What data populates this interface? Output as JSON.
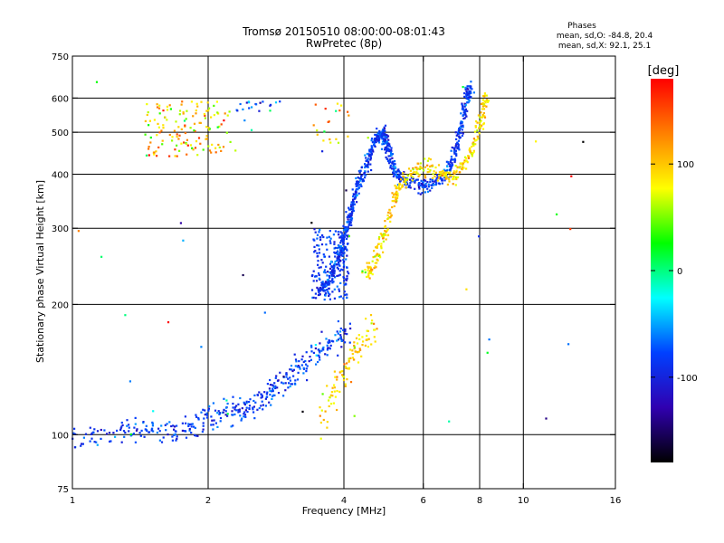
{
  "chart_data": {
    "type": "scatter",
    "title": "Tromsø 20150510 08:00:00-08:01:43",
    "subtitle": "RwPretec (8p)",
    "xlabel": "Frequency [MHz]",
    "ylabel": "Stationary phase Virtual Height [km]",
    "x_scale": "log",
    "y_scale": "log",
    "xlim": [
      1,
      16
    ],
    "ylim": [
      75,
      750
    ],
    "x_ticks": [
      1,
      2,
      4,
      6,
      8,
      10,
      16
    ],
    "x_tick_labels": [
      "1",
      "2",
      "4",
      "6",
      "8",
      "10",
      "16"
    ],
    "y_ticks": [
      75,
      100,
      200,
      300,
      400,
      500,
      600,
      750
    ],
    "y_tick_labels": [
      "75",
      "100",
      "200",
      "300",
      "400",
      "500",
      "600",
      "750"
    ],
    "grid": true,
    "grid_x": [
      2,
      4,
      6,
      8,
      10
    ],
    "grid_y": [
      100,
      200,
      300,
      400,
      500,
      600
    ],
    "legend": {
      "title": "Phases",
      "lines": [
        "mean, sd,O:  -84.8, 20.4",
        "mean, sd,X:  92.1, 25.1"
      ],
      "placement": "top-right"
    },
    "colorbar": {
      "label": "[deg]",
      "range": [
        -180,
        180
      ],
      "ticks": [
        100,
        0,
        -100
      ],
      "tick_labels": [
        "100",
        "0",
        "-100"
      ],
      "colors": [
        "#ff0000",
        "#ff8000",
        "#ffff00",
        "#00ff00",
        "#00ffff",
        "#0040ff",
        "#3000b0",
        "#000000"
      ]
    },
    "series": [
      {
        "name": "O-mode",
        "phase_mean": -84.8,
        "phase_sd": 20.4
      },
      {
        "name": "X-mode",
        "phase_mean": 92.1,
        "phase_sd": 25.1
      }
    ],
    "o_trace_high": [
      [
        3.55,
        215
      ],
      [
        3.7,
        225
      ],
      [
        3.85,
        250
      ],
      [
        3.95,
        270
      ],
      [
        4.05,
        300
      ],
      [
        4.15,
        330
      ],
      [
        4.25,
        365
      ],
      [
        4.4,
        400
      ],
      [
        4.55,
        440
      ],
      [
        4.7,
        480
      ],
      [
        4.85,
        500
      ],
      [
        4.95,
        480
      ],
      [
        5.05,
        440
      ],
      [
        5.2,
        400
      ],
      [
        5.5,
        385
      ],
      [
        6.0,
        375
      ],
      [
        6.5,
        385
      ],
      [
        6.9,
        420
      ],
      [
        7.15,
        470
      ],
      [
        7.35,
        540
      ],
      [
        7.5,
        610
      ],
      [
        7.65,
        640
      ]
    ],
    "x_trace_high": [
      [
        4.45,
        230
      ],
      [
        4.65,
        250
      ],
      [
        4.85,
        280
      ],
      [
        5.05,
        320
      ],
      [
        5.25,
        365
      ],
      [
        5.55,
        400
      ],
      [
        6.0,
        415
      ],
      [
        6.6,
        400
      ],
      [
        7.0,
        395
      ],
      [
        7.4,
        420
      ],
      [
        7.8,
        470
      ],
      [
        8.1,
        540
      ],
      [
        8.3,
        610
      ]
    ],
    "blob_low": {
      "x_range": [
        3.4,
        4.1
      ],
      "y_range": [
        205,
        300
      ]
    },
    "x_trace_low": [
      [
        3.55,
        105
      ],
      [
        3.8,
        125
      ],
      [
        4.0,
        140
      ],
      [
        4.2,
        155
      ],
      [
        4.45,
        165
      ],
      [
        4.7,
        180
      ]
    ],
    "o_trace_low": [
      [
        1.0,
        98
      ],
      [
        1.2,
        100
      ],
      [
        1.4,
        104
      ],
      [
        1.6,
        101
      ],
      [
        1.8,
        104
      ],
      [
        2.0,
        110
      ],
      [
        2.2,
        112
      ],
      [
        2.4,
        115
      ],
      [
        2.6,
        120
      ],
      [
        2.8,
        128
      ],
      [
        3.0,
        135
      ],
      [
        3.2,
        145
      ],
      [
        3.5,
        155
      ],
      [
        3.8,
        165
      ],
      [
        4.1,
        170
      ]
    ],
    "f_cluster": {
      "x_range": [
        1.45,
        2.25
      ],
      "y_range": [
        440,
        590
      ]
    }
  }
}
